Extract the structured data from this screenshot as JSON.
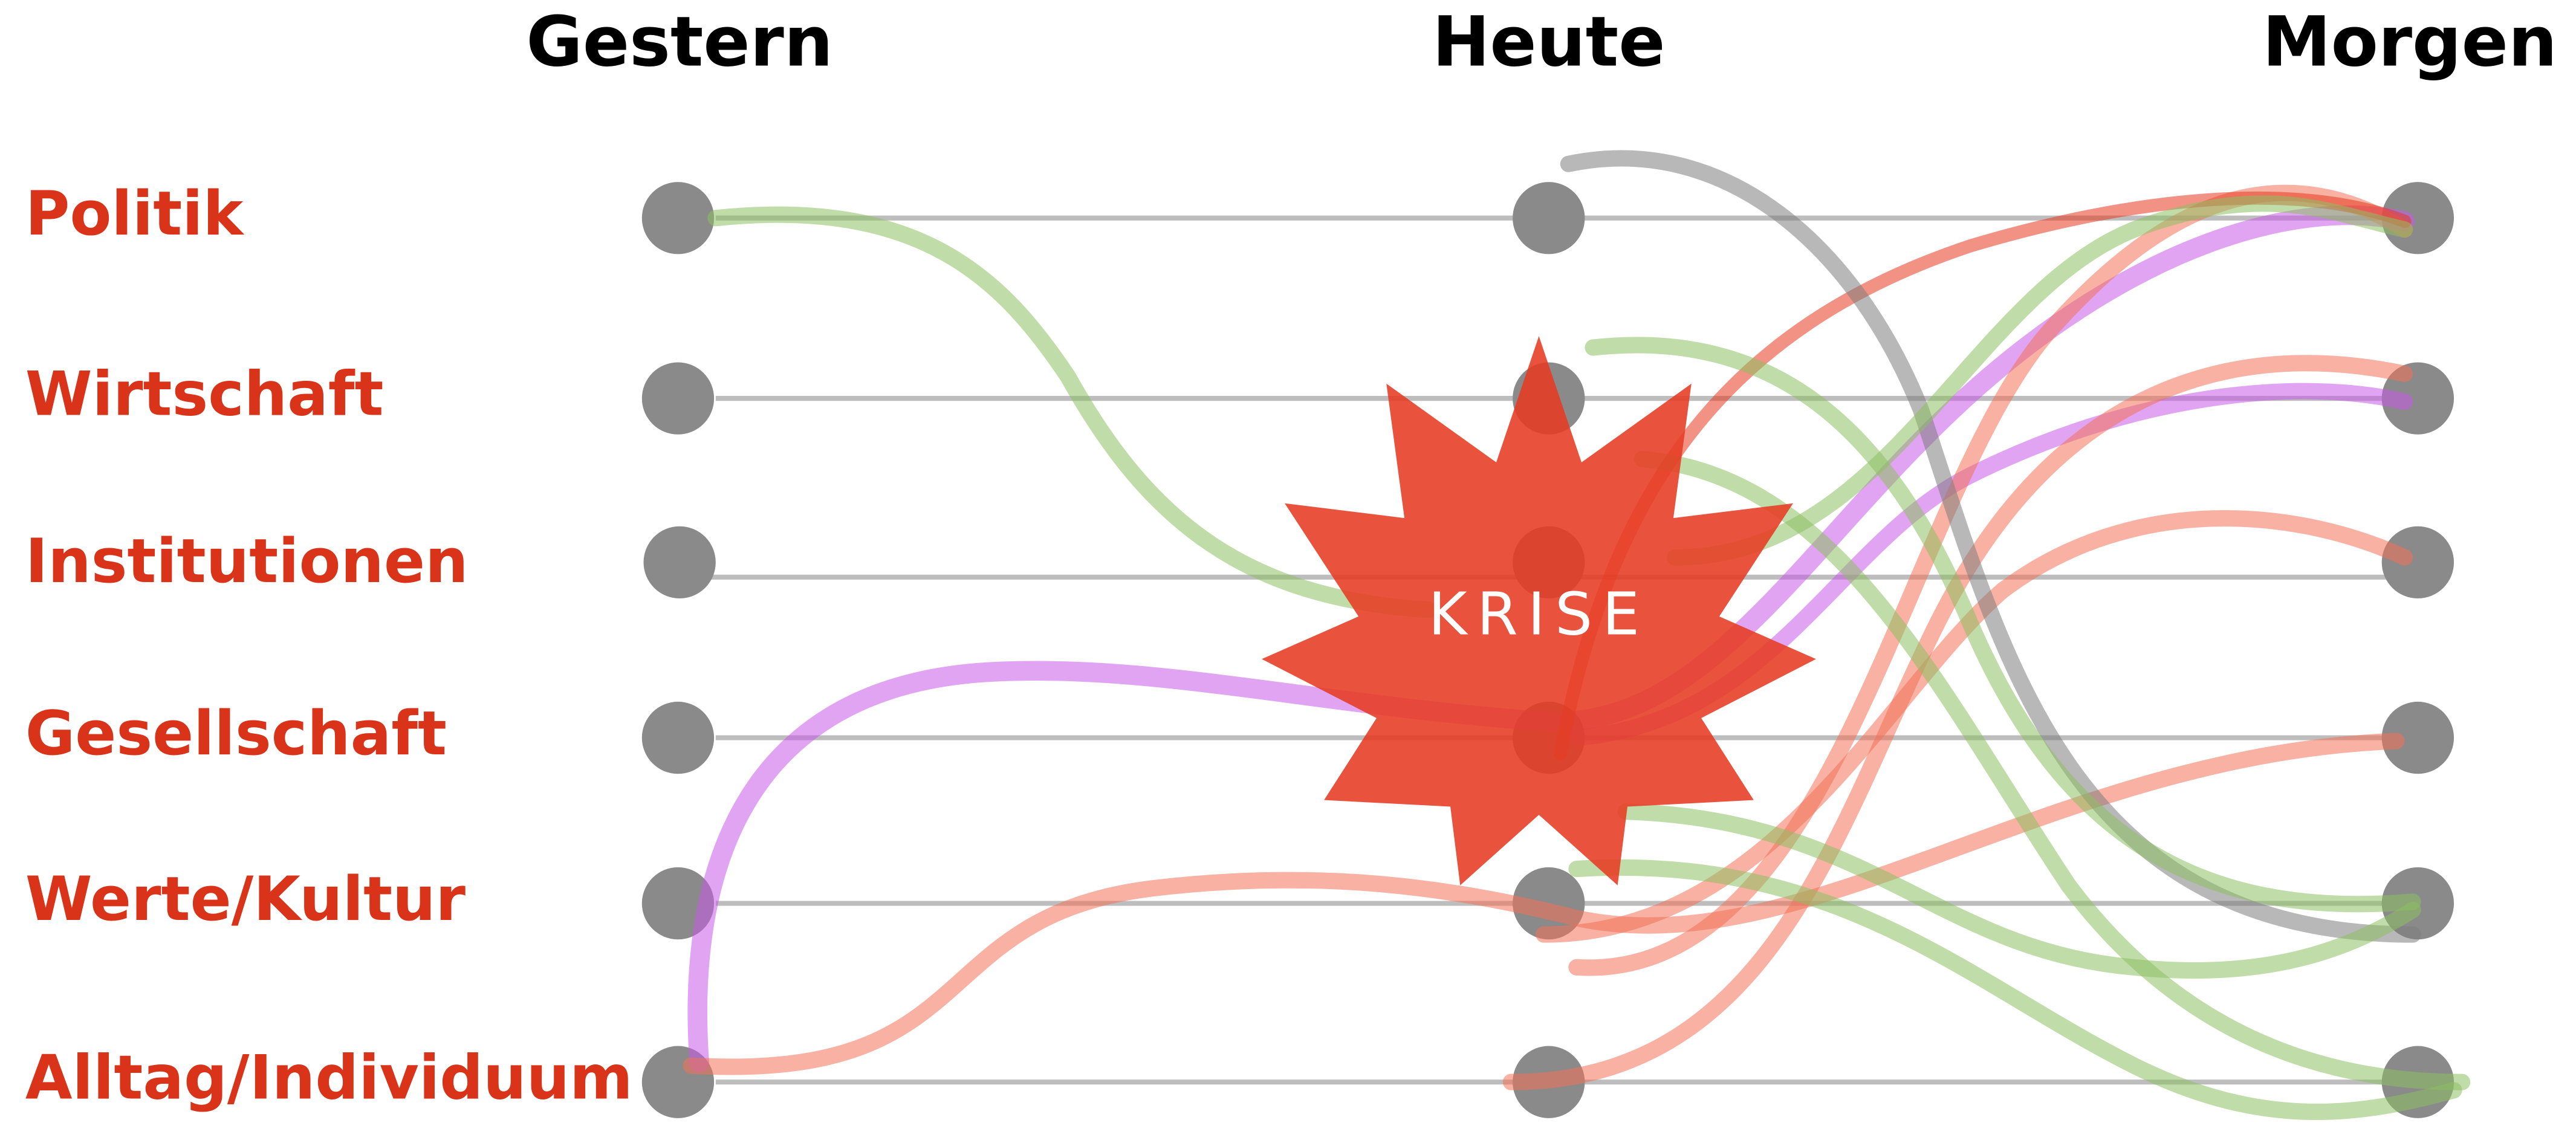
{
  "header": {
    "columns": [
      "Gestern",
      "Heute",
      "Morgen"
    ]
  },
  "rows": [
    "Politik",
    "Wirtschaft",
    "Institutionen",
    "Gesellschaft",
    "Werte/Kultur",
    "Alltag/Individuum"
  ],
  "center_label": "KRISE"
}
